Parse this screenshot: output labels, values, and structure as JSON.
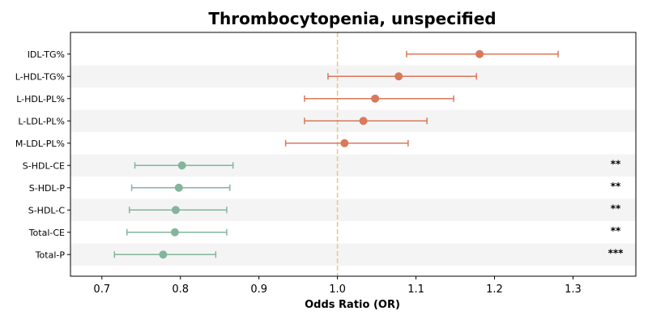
{
  "chart_data": {
    "type": "scatter",
    "title": "Thrombocytopenia, unspecified",
    "xlabel": "Odds Ratio (OR)",
    "ylabel": "",
    "xlim": [
      0.66,
      1.38
    ],
    "xticks": [
      0.7,
      0.8,
      0.9,
      1.0,
      1.1,
      1.2,
      1.3
    ],
    "xtick_labels": [
      "0.7",
      "0.8",
      "0.9",
      "1.0",
      "1.1",
      "1.2",
      "1.3"
    ],
    "reference_line": 1.0,
    "grid": false,
    "colors": {
      "positive": "#d9785a",
      "negative": "#84b59c",
      "reference": "#f2c27a",
      "band": "#f4f4f4"
    },
    "rows": [
      {
        "label": "IDL-TG%",
        "or": 1.181,
        "lower": 1.088,
        "upper": 1.281,
        "sig": ""
      },
      {
        "label": "L-HDL-TG%",
        "or": 1.078,
        "lower": 0.988,
        "upper": 1.177,
        "sig": ""
      },
      {
        "label": "L-HDL-PL%",
        "or": 1.048,
        "lower": 0.958,
        "upper": 1.148,
        "sig": ""
      },
      {
        "label": "L-LDL-PL%",
        "or": 1.033,
        "lower": 0.958,
        "upper": 1.114,
        "sig": ""
      },
      {
        "label": "M-LDL-PL%",
        "or": 1.009,
        "lower": 0.934,
        "upper": 1.09,
        "sig": ""
      },
      {
        "label": "S-HDL-CE",
        "or": 0.802,
        "lower": 0.742,
        "upper": 0.867,
        "sig": "**"
      },
      {
        "label": "S-HDL-P",
        "or": 0.798,
        "lower": 0.738,
        "upper": 0.863,
        "sig": "**"
      },
      {
        "label": "S-HDL-C",
        "or": 0.794,
        "lower": 0.735,
        "upper": 0.859,
        "sig": "**"
      },
      {
        "label": "Total-CE",
        "or": 0.793,
        "lower": 0.732,
        "upper": 0.859,
        "sig": "**"
      },
      {
        "label": "Total-P",
        "or": 0.778,
        "lower": 0.716,
        "upper": 0.845,
        "sig": "***"
      }
    ]
  }
}
